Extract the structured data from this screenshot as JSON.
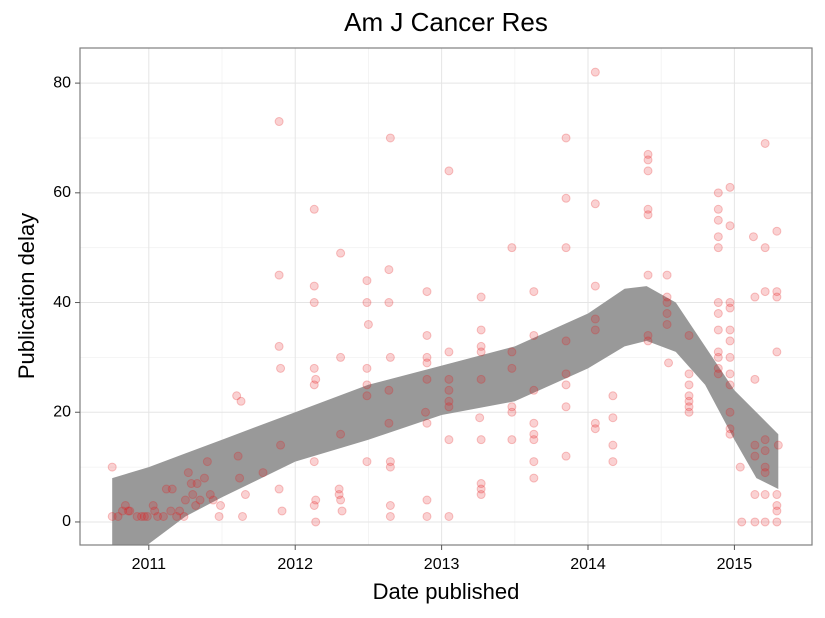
{
  "chart_data": {
    "type": "scatter",
    "title": "Am J Cancer Res",
    "x_label": "Date published",
    "y_label": "Publication delay",
    "xlim": [
      2010.53,
      2015.53
    ],
    "ylim": [
      -4.2,
      86.4
    ],
    "xticks": [
      2011,
      2012,
      2013,
      2014,
      2015
    ],
    "yticks": [
      0,
      20,
      40,
      60,
      80
    ],
    "grid": true,
    "color": "#e41a1c",
    "x": [
      2010.75,
      2010.75,
      2010.79,
      2010.82,
      2010.84,
      2010.86,
      2010.87,
      2010.92,
      2010.95,
      2010.97,
      2010.99,
      2011.03,
      2011.04,
      2011.06,
      2011.1,
      2011.12,
      2011.15,
      2011.16,
      2011.19,
      2011.21,
      2011.24,
      2011.25,
      2011.27,
      2011.29,
      2011.3,
      2011.32,
      2011.33,
      2011.35,
      2011.38,
      2011.4,
      2011.42,
      2011.44,
      2011.48,
      2011.49,
      2011.6,
      2011.62,
      2011.63,
      2011.66,
      2011.64,
      2011.61,
      2011.78,
      2011.89,
      2011.89,
      2011.89,
      2011.9,
      2011.9,
      2011.89,
      2011.91,
      2012.13,
      2012.13,
      2012.13,
      2012.13,
      2012.13,
      2012.14,
      2012.13,
      2012.14,
      2012.13,
      2012.14,
      2012.31,
      2012.31,
      2012.31,
      2012.3,
      2012.31,
      2012.32,
      2012.3,
      2012.49,
      2012.49,
      2012.5,
      2012.49,
      2012.49,
      2012.49,
      2012.49,
      2012.65,
      2012.64,
      2012.64,
      2012.65,
      2012.64,
      2012.64,
      2012.65,
      2012.65,
      2012.65,
      2012.65,
      2012.9,
      2012.9,
      2012.9,
      2012.9,
      2012.9,
      2012.89,
      2012.9,
      2012.9,
      2012.9,
      2013.05,
      2013.05,
      2013.05,
      2013.05,
      2013.05,
      2013.05,
      2013.05,
      2013.05,
      2013.27,
      2013.27,
      2013.27,
      2013.27,
      2013.27,
      2013.26,
      2013.27,
      2013.27,
      2013.27,
      2013.27,
      2013.48,
      2013.48,
      2013.48,
      2013.48,
      2013.48,
      2013.48,
      2013.63,
      2013.63,
      2013.63,
      2013.63,
      2013.63,
      2013.63,
      2013.63,
      2013.63,
      2013.85,
      2013.85,
      2013.85,
      2013.85,
      2013.85,
      2013.85,
      2013.85,
      2013.85,
      2014.05,
      2014.05,
      2014.05,
      2014.05,
      2014.05,
      2014.05,
      2014.05,
      2014.17,
      2014.17,
      2014.17,
      2014.17,
      2014.41,
      2014.41,
      2014.41,
      2014.41,
      2014.41,
      2014.41,
      2014.41,
      2014.41,
      2014.54,
      2014.54,
      2014.54,
      2014.54,
      2014.54,
      2014.55,
      2014.69,
      2014.69,
      2014.69,
      2014.69,
      2014.69,
      2014.69,
      2014.69,
      2014.89,
      2014.89,
      2014.89,
      2014.89,
      2014.89,
      2014.89,
      2014.89,
      2014.89,
      2014.89,
      2014.89,
      2014.89,
      2014.89,
      2014.97,
      2014.97,
      2014.97,
      2014.97,
      2014.97,
      2014.97,
      2014.97,
      2014.97,
      2014.97,
      2014.97,
      2014.97,
      2014.97,
      2015.04,
      2015.05,
      2015.13,
      2015.14,
      2015.14,
      2015.14,
      2015.14,
      2015.14,
      2015.14,
      2015.21,
      2015.21,
      2015.21,
      2015.21,
      2015.21,
      2015.21,
      2015.21,
      2015.21,
      2015.21,
      2015.29,
      2015.29,
      2015.29,
      2015.29,
      2015.3,
      2015.29,
      2015.29,
      2015.29,
      2015.29
    ],
    "values": [
      10,
      1,
      1,
      2,
      3,
      2,
      2,
      1,
      1,
      1,
      1,
      3,
      2,
      1,
      1,
      6,
      2,
      6,
      1,
      2,
      1,
      4,
      9,
      7,
      5,
      3,
      7,
      4,
      8,
      11,
      5,
      4,
      1,
      3,
      23,
      8,
      22,
      5,
      1,
      12,
      9,
      45,
      73,
      32,
      28,
      14,
      6,
      2,
      57,
      43,
      40,
      28,
      25,
      26,
      11,
      4,
      3,
      0,
      49,
      30,
      16,
      6,
      4,
      2,
      5,
      44,
      40,
      36,
      28,
      25,
      23,
      11,
      70,
      46,
      40,
      30,
      24,
      18,
      11,
      10,
      3,
      1,
      42,
      34,
      30,
      29,
      26,
      20,
      18,
      4,
      1,
      64,
      31,
      26,
      24,
      22,
      21,
      15,
      1,
      41,
      35,
      32,
      31,
      26,
      19,
      15,
      7,
      6,
      5,
      50,
      31,
      28,
      21,
      20,
      15,
      42,
      34,
      24,
      18,
      16,
      15,
      11,
      8,
      70,
      59,
      50,
      33,
      27,
      25,
      21,
      12,
      82,
      58,
      43,
      37,
      35,
      18,
      17,
      23,
      19,
      14,
      11,
      67,
      66,
      64,
      57,
      56,
      45,
      34,
      33,
      45,
      41,
      40,
      38,
      36,
      29,
      34,
      27,
      25,
      23,
      22,
      21,
      20,
      60,
      57,
      55,
      52,
      50,
      40,
      38,
      35,
      31,
      30,
      28,
      27,
      61,
      54,
      40,
      39,
      35,
      33,
      30,
      27,
      25,
      20,
      17,
      16,
      10,
      0,
      52,
      41,
      26,
      14,
      12,
      5,
      0,
      69,
      50,
      42,
      15,
      13,
      10,
      9,
      5,
      0,
      53,
      42,
      41,
      31,
      14,
      5,
      3,
      2,
      0
    ],
    "band": {
      "color": "#999999",
      "x": [
        2010.75,
        2011.0,
        2011.25,
        2011.5,
        2012.0,
        2012.5,
        2013.0,
        2013.5,
        2014.0,
        2014.25,
        2014.4,
        2014.6,
        2014.8,
        2015.0,
        2015.15,
        2015.3
      ],
      "lower": [
        -12,
        -4,
        1,
        4.5,
        11,
        15,
        19.5,
        22,
        28,
        32,
        33,
        31,
        25,
        15,
        8,
        6
      ],
      "upper": [
        8,
        10,
        12.5,
        15,
        20,
        25,
        28.5,
        32,
        38,
        42.5,
        43,
        40,
        32,
        24,
        20,
        16
      ]
    }
  }
}
